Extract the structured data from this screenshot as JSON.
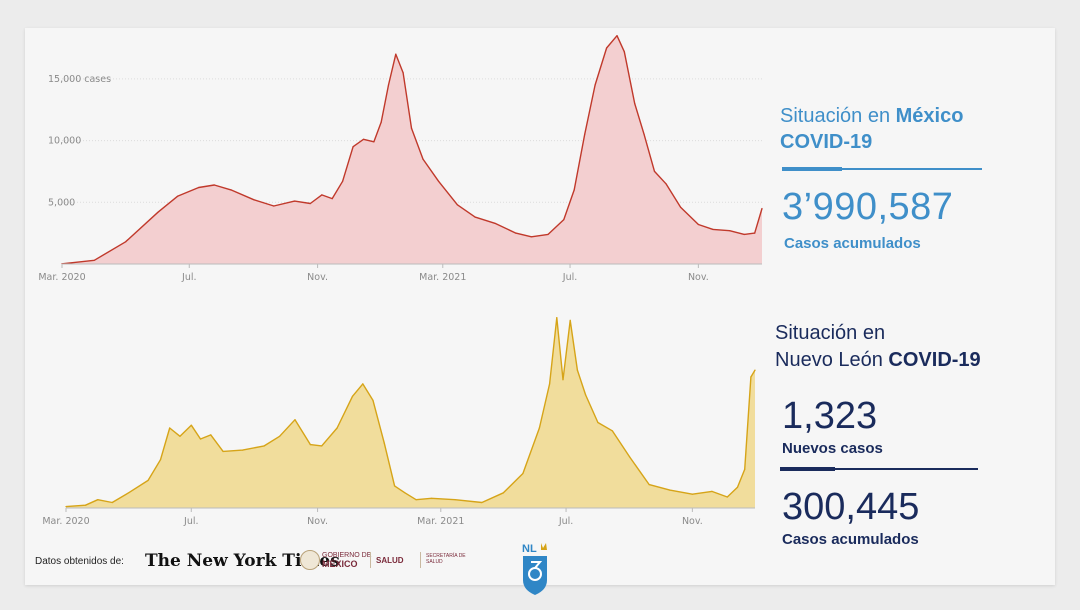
{
  "chart_data": [
    {
      "type": "area",
      "name": "mexico",
      "color": "#c0392b",
      "fill": "#f3cfd0",
      "x_ticks": [
        "Mar. 2020",
        "Jul.",
        "Nov.",
        "Mar. 2021",
        "Jul.",
        "Nov."
      ],
      "y_ticks": [
        "15,000 cases",
        "10,000",
        "5,000"
      ],
      "y_tick_values": [
        15000,
        10000,
        5000
      ],
      "ylim": [
        0,
        17500
      ],
      "x": [
        "2020-03-01",
        "2020-04-01",
        "2020-05-01",
        "2020-06-01",
        "2020-06-20",
        "2020-07-10",
        "2020-07-25",
        "2020-08-10",
        "2020-09-01",
        "2020-09-20",
        "2020-10-10",
        "2020-10-25",
        "2020-11-05",
        "2020-11-15",
        "2020-11-25",
        "2020-12-05",
        "2020-12-15",
        "2020-12-25",
        "2021-01-01",
        "2021-01-08",
        "2021-01-15",
        "2021-01-22",
        "2021-01-30",
        "2021-02-10",
        "2021-02-25",
        "2021-03-15",
        "2021-04-01",
        "2021-04-20",
        "2021-05-10",
        "2021-05-25",
        "2021-06-10",
        "2021-06-25",
        "2021-07-05",
        "2021-07-15",
        "2021-07-25",
        "2021-08-05",
        "2021-08-15",
        "2021-08-22",
        "2021-09-01",
        "2021-09-10",
        "2021-09-20",
        "2021-10-01",
        "2021-10-15",
        "2021-11-01",
        "2021-11-15",
        "2021-12-01",
        "2021-12-15",
        "2021-12-25",
        "2022-01-01"
      ],
      "y": [
        20,
        300,
        1800,
        4200,
        5500,
        6200,
        6400,
        6000,
        5200,
        4700,
        5100,
        4900,
        5600,
        5300,
        6700,
        9500,
        10100,
        9900,
        11500,
        14500,
        17000,
        15500,
        11000,
        8500,
        6700,
        4800,
        3800,
        3300,
        2500,
        2200,
        2400,
        3600,
        6000,
        10500,
        14500,
        17500,
        18500,
        17200,
        13000,
        10500,
        7500,
        6500,
        4600,
        3200,
        2800,
        2700,
        2400,
        2500,
        4500
      ]
    },
    {
      "type": "area",
      "name": "nuevo-leon",
      "color": "#d6a418",
      "fill": "#f1dd9c",
      "x_ticks": [
        "Mar. 2020",
        "Jul.",
        "Nov.",
        "Mar. 2021",
        "Jul.",
        "Nov."
      ],
      "ylim": [
        0,
        1450
      ],
      "x": [
        "2020-03-01",
        "2020-03-20",
        "2020-04-01",
        "2020-04-15",
        "2020-05-01",
        "2020-05-20",
        "2020-06-01",
        "2020-06-10",
        "2020-06-20",
        "2020-07-01",
        "2020-07-10",
        "2020-07-20",
        "2020-08-01",
        "2020-08-20",
        "2020-09-10",
        "2020-09-25",
        "2020-10-10",
        "2020-10-25",
        "2020-11-05",
        "2020-11-20",
        "2020-12-05",
        "2020-12-15",
        "2020-12-25",
        "2021-01-05",
        "2021-01-15",
        "2021-01-25",
        "2021-02-05",
        "2021-02-20",
        "2021-03-15",
        "2021-04-10",
        "2021-05-01",
        "2021-05-20",
        "2021-06-05",
        "2021-06-15",
        "2021-06-22",
        "2021-06-28",
        "2021-07-05",
        "2021-07-12",
        "2021-07-20",
        "2021-08-01",
        "2021-08-15",
        "2021-09-01",
        "2021-09-20",
        "2021-10-10",
        "2021-11-01",
        "2021-11-20",
        "2021-12-05",
        "2021-12-15",
        "2021-12-22",
        "2021-12-28",
        "2022-01-01"
      ],
      "y": [
        10,
        20,
        60,
        40,
        110,
        200,
        350,
        580,
        520,
        600,
        500,
        530,
        410,
        420,
        450,
        520,
        640,
        460,
        450,
        580,
        810,
        900,
        780,
        470,
        160,
        110,
        60,
        70,
        60,
        40,
        110,
        250,
        580,
        900,
        1380,
        930,
        1360,
        1000,
        820,
        620,
        560,
        370,
        170,
        130,
        100,
        120,
        80,
        150,
        280,
        950,
        1000
      ]
    }
  ],
  "mexico": {
    "title_pre": "Situación en ",
    "title_bold": "México",
    "title_line2": "COVID-19",
    "total": "3’990,587",
    "total_label": "Casos acumulados"
  },
  "nuevo_leon": {
    "title_line1": "Situación en",
    "title_line2_pre": "Nuevo León ",
    "title_line2_bold": "COVID-19",
    "new_cases": "1,323",
    "new_cases_label": "Nuevos casos",
    "total": "300,445",
    "total_label": "Casos acumulados"
  },
  "footer": {
    "source_label": "Datos obtenidos de:",
    "nyt": "The New York Times",
    "gob_small": "GOBIERNO DE",
    "gob_big": "MÉXICO",
    "salud": "SALUD",
    "salud_sub": "SECRETARÍA DE SALUD",
    "nl_logo_text": "NL"
  }
}
